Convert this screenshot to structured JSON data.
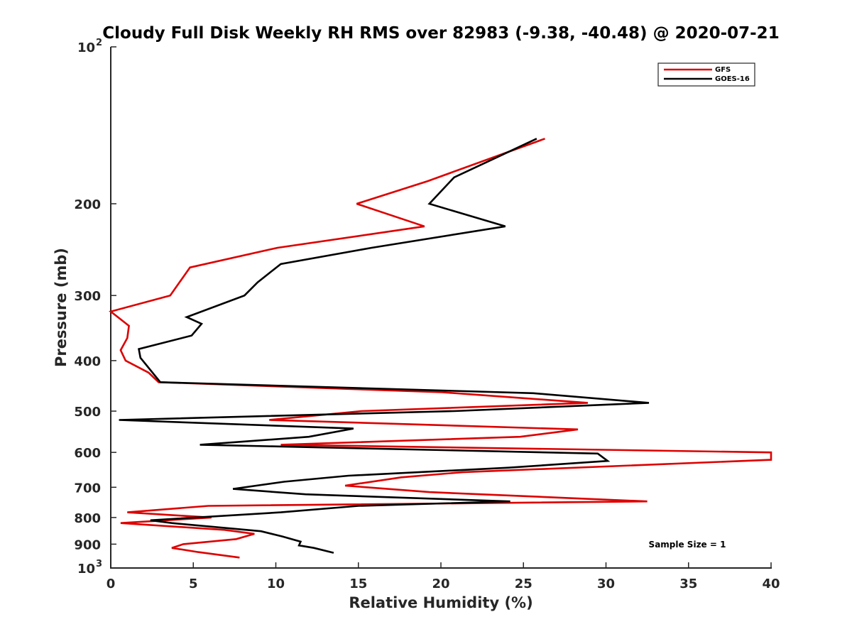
{
  "chart_data": {
    "type": "line",
    "title": "Cloudy Full Disk Weekly RH RMS over 82983 (-9.38, -40.48) @ 2020-07-21",
    "xlabel": "Relative Humidity (%)",
    "ylabel": "Pressure (mb)",
    "xlim": [
      0,
      40
    ],
    "ylim": [
      100,
      1000
    ],
    "yscale": "log",
    "y_reversed": true,
    "x_ticks": [
      "0",
      "5",
      "10",
      "15",
      "20",
      "25",
      "30",
      "35",
      "40"
    ],
    "y_ticks": [
      {
        "value": 100,
        "label": "10",
        "exp": "2"
      },
      {
        "value": 200,
        "label": "200"
      },
      {
        "value": 300,
        "label": "300"
      },
      {
        "value": 400,
        "label": "400"
      },
      {
        "value": 500,
        "label": "500"
      },
      {
        "value": 600,
        "label": "600"
      },
      {
        "value": 700,
        "label": "700"
      },
      {
        "value": 800,
        "label": "800"
      },
      {
        "value": 900,
        "label": "900"
      },
      {
        "value": 1000,
        "label": "10",
        "exp": "3"
      }
    ],
    "legend_position": "top-right",
    "grid": false,
    "annotation": "Sample Size = 1",
    "series": [
      {
        "name": "GFS",
        "color": "#dd0000",
        "points": [
          [
            26.3,
            150
          ],
          [
            19.2,
            181
          ],
          [
            14.9,
            200
          ],
          [
            19.0,
            221
          ],
          [
            10.1,
            243
          ],
          [
            4.8,
            265
          ],
          [
            3.6,
            300
          ],
          [
            0.0,
            322
          ],
          [
            1.1,
            343
          ],
          [
            1.0,
            362
          ],
          [
            0.6,
            382
          ],
          [
            0.9,
            400
          ],
          [
            2.3,
            422
          ],
          [
            2.9,
            440
          ],
          [
            20.1,
            460
          ],
          [
            28.9,
            482
          ],
          [
            15.2,
            500
          ],
          [
            9.6,
            520
          ],
          [
            28.3,
            542
          ],
          [
            24.8,
            560
          ],
          [
            10.3,
            580
          ],
          [
            40.0,
            600
          ],
          [
            40.0,
            620
          ],
          [
            21.3,
            655
          ],
          [
            17.6,
            670
          ],
          [
            14.2,
            695
          ],
          [
            19.3,
            715
          ],
          [
            32.5,
            745
          ],
          [
            5.9,
            760
          ],
          [
            1.0,
            782
          ],
          [
            6.1,
            800
          ],
          [
            0.6,
            820
          ],
          [
            6.9,
            845
          ],
          [
            8.7,
            860
          ],
          [
            7.6,
            880
          ],
          [
            4.4,
            900
          ],
          [
            3.7,
            915
          ],
          [
            5.3,
            932
          ],
          [
            7.8,
            955
          ]
        ]
      },
      {
        "name": "GOES-16",
        "color": "#000000",
        "points": [
          [
            25.8,
            150
          ],
          [
            20.8,
            178
          ],
          [
            19.3,
            200
          ],
          [
            23.9,
            221
          ],
          [
            15.8,
            243
          ],
          [
            10.3,
            261
          ],
          [
            8.9,
            283
          ],
          [
            8.1,
            300
          ],
          [
            4.6,
            330
          ],
          [
            5.5,
            340
          ],
          [
            4.9,
            358
          ],
          [
            1.7,
            380
          ],
          [
            1.8,
            395
          ],
          [
            3.0,
            440
          ],
          [
            25.6,
            462
          ],
          [
            32.6,
            482
          ],
          [
            20.8,
            500
          ],
          [
            0.5,
            520
          ],
          [
            14.7,
            540
          ],
          [
            12.0,
            560
          ],
          [
            5.4,
            580
          ],
          [
            29.5,
            603
          ],
          [
            30.1,
            623
          ],
          [
            24.1,
            642
          ],
          [
            14.4,
            665
          ],
          [
            10.5,
            683
          ],
          [
            7.4,
            705
          ],
          [
            11.8,
            722
          ],
          [
            24.2,
            745
          ],
          [
            15.0,
            760
          ],
          [
            10.3,
            782
          ],
          [
            2.4,
            810
          ],
          [
            3.7,
            820
          ],
          [
            9.1,
            850
          ],
          [
            10.4,
            870
          ],
          [
            11.5,
            890
          ],
          [
            11.4,
            905
          ],
          [
            12.3,
            915
          ],
          [
            13.5,
            935
          ]
        ]
      }
    ]
  }
}
